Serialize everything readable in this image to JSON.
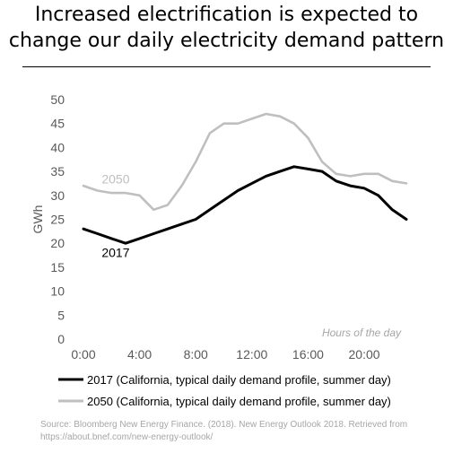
{
  "title": "Increased electrification is expected to change our daily electricity demand pattern",
  "source": "Source: Bloomberg New Energy Finance. (2018). New Energy Outlook 2018. Retrieved from https://about.bnef.com/new-energy-outlook/",
  "chart_data": {
    "type": "line",
    "title": "",
    "xlabel": "Hours of the day",
    "ylabel": "GWh",
    "ylim": [
      0,
      50
    ],
    "yticks": [
      0,
      5,
      10,
      15,
      20,
      25,
      30,
      35,
      40,
      45,
      50
    ],
    "xlim": [
      0,
      23
    ],
    "xticks": [
      0,
      4,
      8,
      12,
      16,
      20
    ],
    "xtick_labels": [
      "0:00",
      "4:00",
      "8:00",
      "12:00",
      "16:00",
      "20:00"
    ],
    "grid": false,
    "legend_position": "bottom",
    "x": [
      0,
      1,
      2,
      3,
      4,
      5,
      6,
      7,
      8,
      9,
      10,
      11,
      12,
      13,
      14,
      15,
      16,
      17,
      18,
      19,
      20,
      21,
      22,
      23
    ],
    "series": [
      {
        "name": "2017 (California, typical daily demand profile, summer day)",
        "label": "2017",
        "color": "#000000",
        "values": [
          23,
          22,
          21,
          20,
          21,
          22,
          23,
          24,
          25,
          27,
          29,
          31,
          32.5,
          34,
          35,
          36,
          35.5,
          35,
          33,
          32,
          31.5,
          30,
          27,
          25
        ]
      },
      {
        "name": "2050 (California, typical daily demand profile, summer day)",
        "label": "2050",
        "color": "#bfbfbf",
        "values": [
          32,
          31,
          30.5,
          30.5,
          30,
          27,
          28,
          32,
          37,
          43,
          45,
          45,
          46,
          47,
          46.5,
          45,
          42,
          37,
          34.5,
          34,
          34.5,
          34.5,
          33,
          32.5
        ]
      }
    ]
  }
}
